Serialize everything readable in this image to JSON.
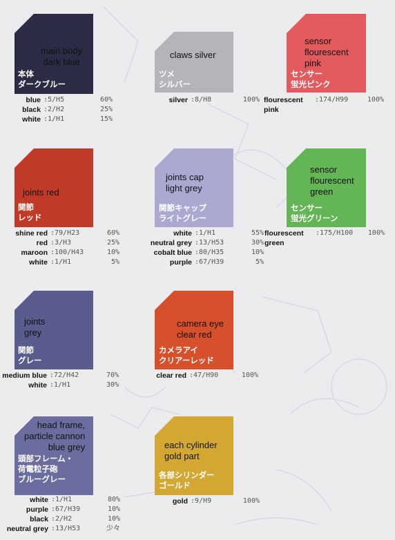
{
  "swatches": [
    {
      "id": "main-body",
      "en": "main body\ndark blue",
      "jp": "本体\nダークブルー",
      "color": "#2b2b45",
      "mix": [
        {
          "name": "blue",
          "code": ":5/H5",
          "pct": "60%"
        },
        {
          "name": "black",
          "code": ":2/H2",
          "pct": "25%"
        },
        {
          "name": "white",
          "code": ":1/H1",
          "pct": "15%"
        }
      ]
    },
    {
      "id": "claws",
      "en": "claws silver",
      "jp": "ツメ\nシルバー",
      "color": "#b4b4b9",
      "mix": [
        {
          "name": "silver",
          "code": ":8/H8",
          "pct": "100%"
        }
      ]
    },
    {
      "id": "sensor-pink",
      "en": "sensor\nflourescent\npink",
      "jp": "センサー\n蛍光ピンク",
      "color": "#e2595e",
      "mix": [
        {
          "name": "flourescent\npink",
          "code": ":174/H99",
          "pct": "100%"
        }
      ]
    },
    {
      "id": "joints-red",
      "en": "joints red",
      "jp": "関節\nレッド",
      "color": "#c13a28",
      "mix": [
        {
          "name": "shine red",
          "code": ":79/H23",
          "pct": "60%"
        },
        {
          "name": "red",
          "code": ":3/H3",
          "pct": "25%"
        },
        {
          "name": "maroon",
          "code": ":100/H43",
          "pct": "10%"
        },
        {
          "name": "white",
          "code": ":1/H1",
          "pct": "5%"
        }
      ]
    },
    {
      "id": "joints-cap",
      "en": "joints cap\nlight grey",
      "jp": "関節キャップ\nライトグレー",
      "color": "#a9a9d2",
      "mix": [
        {
          "name": "white",
          "code": ":1/H1",
          "pct": "55%"
        },
        {
          "name": "neutral grey",
          "code": ":13/H53",
          "pct": "30%"
        },
        {
          "name": "cobalt blue",
          "code": ":80/H35",
          "pct": "10%"
        },
        {
          "name": "purple",
          "code": ":67/H39",
          "pct": "5%"
        }
      ]
    },
    {
      "id": "sensor-green",
      "en": "sensor\nflourescent\ngreen",
      "jp": "センサー\n蛍光グリーン",
      "color": "#63b555",
      "mix": [
        {
          "name": "flourescent\ngreen",
          "code": ":175/H100",
          "pct": "100%"
        }
      ]
    },
    {
      "id": "joints-grey",
      "en": "joints\ngrey",
      "jp": "関節\nグレー",
      "color": "#595c8c",
      "mix": [
        {
          "name": "medium blue",
          "code": ":72/H42",
          "pct": "70%"
        },
        {
          "name": "white",
          "code": ":1/H1",
          "pct": "30%"
        }
      ]
    },
    {
      "id": "camera-eye",
      "en": "camera eye\nclear red",
      "jp": "カメラアイ\nクリアーレッド",
      "color": "#d6502b",
      "mix": [
        {
          "name": "clear red",
          "code": ":47/H90",
          "pct": "100%"
        }
      ]
    },
    {
      "id": "head-frame",
      "en": "head frame,\nparticle cannon\nblue grey",
      "jp": "頭部フレーム・\n荷電粒子砲\nブルーグレー",
      "color": "#6c6d9f",
      "mix": [
        {
          "name": "white",
          "code": ":1/H1",
          "pct": "80%"
        },
        {
          "name": "purple",
          "code": ":67/H39",
          "pct": "10%"
        },
        {
          "name": "black",
          "code": ":2/H2",
          "pct": "10%"
        },
        {
          "name": "neutral grey",
          "code": ":13/H53",
          "pct": "少々"
        }
      ]
    },
    {
      "id": "cylinder",
      "en": "each cylinder\ngold part",
      "jp": "各部シリンダー\nゴールド",
      "color": "#d2a832",
      "mix": [
        {
          "name": "gold",
          "code": ":9/H9",
          "pct": "100%"
        }
      ]
    }
  ]
}
